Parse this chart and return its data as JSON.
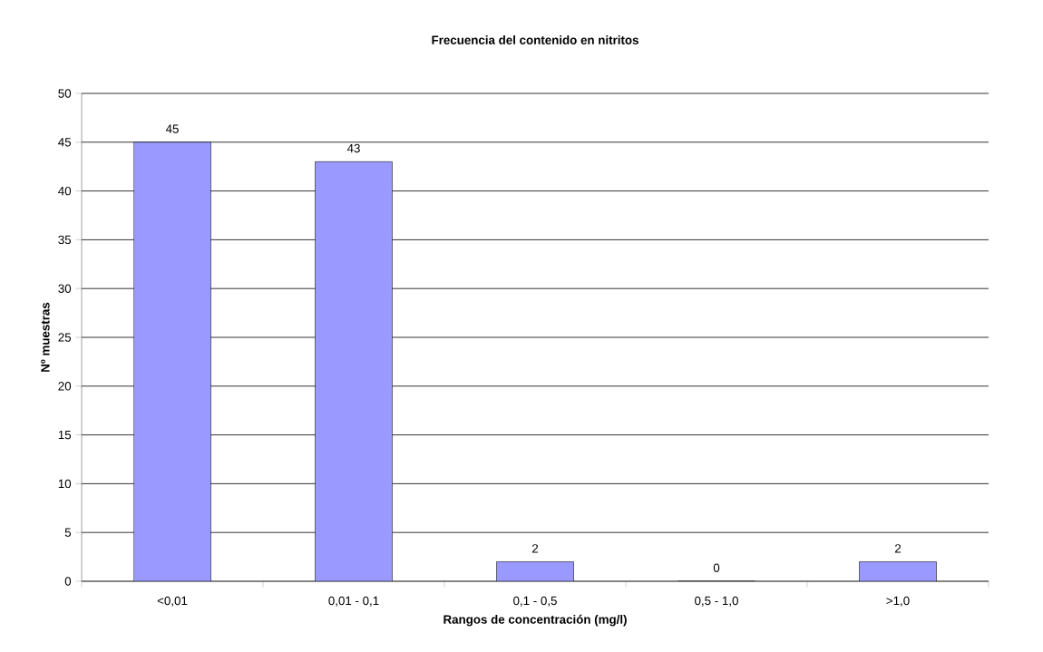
{
  "chart_data": {
    "type": "bar",
    "title": "Frecuencia del contenido en nitritos",
    "xlabel": "Rangos de concentración (mg/l)",
    "ylabel": "Nº muestras",
    "categories": [
      "<0,01",
      "0,01 - 0,1",
      "0,1 - 0,5",
      "0,5 - 1,0",
      ">1,0"
    ],
    "values": [
      45,
      43,
      2,
      0,
      2
    ],
    "color": "#9999ff",
    "ylim": [
      0,
      50
    ],
    "yticks": [
      0,
      5,
      10,
      15,
      20,
      25,
      30,
      35,
      40,
      45,
      50
    ],
    "grid": "y",
    "data_labels": true
  }
}
